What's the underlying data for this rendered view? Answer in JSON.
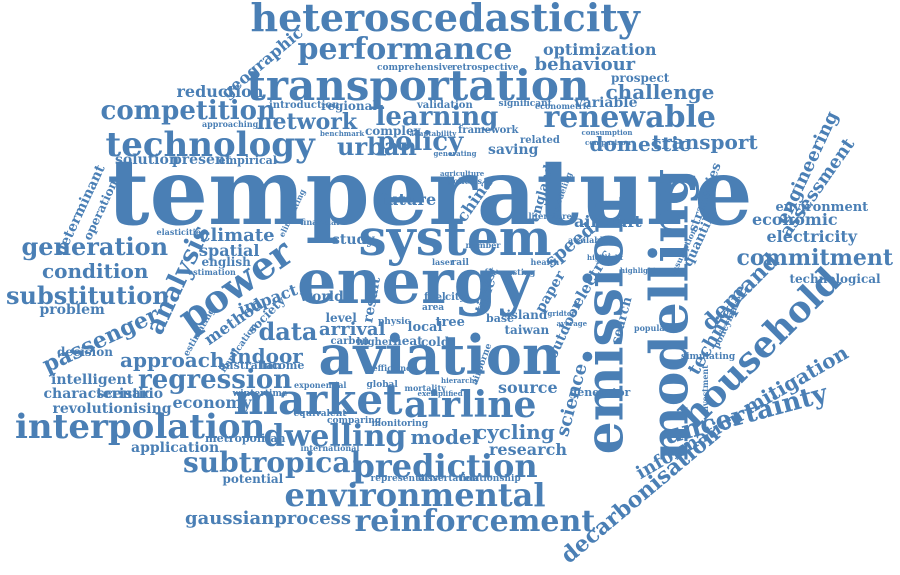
{
  "word_cloud": {
    "color": "#4a7fb5",
    "words": [
      {
        "id": "temperature",
        "text": "temperature"
      },
      {
        "id": "energy",
        "text": "energy"
      },
      {
        "id": "system",
        "text": "system"
      },
      {
        "id": "aviation",
        "text": "aviation"
      },
      {
        "id": "emission",
        "text": "emission"
      },
      {
        "id": "modelling",
        "text": "modelling"
      },
      {
        "id": "transportation",
        "text": "transportation"
      },
      {
        "id": "heteroscedasticity",
        "text": "heteroscedasticity"
      },
      {
        "id": "market",
        "text": "market"
      },
      {
        "id": "airline",
        "text": "airline"
      },
      {
        "id": "interpolation",
        "text": "interpolation"
      },
      {
        "id": "environmental",
        "text": "environmental"
      },
      {
        "id": "prediction",
        "text": "prediction"
      },
      {
        "id": "reinforcement",
        "text": "reinforcement"
      },
      {
        "id": "household",
        "text": "household"
      },
      {
        "id": "renewable",
        "text": "renewable"
      },
      {
        "id": "performance",
        "text": "performance"
      },
      {
        "id": "technology",
        "text": "technology"
      },
      {
        "id": "power",
        "text": "power"
      },
      {
        "id": "dwelling",
        "text": "dwelling"
      },
      {
        "id": "subtropical",
        "text": "subtropical"
      },
      {
        "id": "regression",
        "text": "regression"
      },
      {
        "id": "uncertainty",
        "text": "uncertainty"
      },
      {
        "id": "policy",
        "text": "policy"
      },
      {
        "id": "learning",
        "text": "learning"
      },
      {
        "id": "competition",
        "text": "competition"
      },
      {
        "id": "generation",
        "text": "generation"
      },
      {
        "id": "substitution",
        "text": "substitution"
      },
      {
        "id": "commitment",
        "text": "commitment"
      },
      {
        "id": "decarbonisation",
        "text": "decarbonisation"
      },
      {
        "id": "analysis",
        "text": "analysis"
      },
      {
        "id": "gaussianprocess",
        "text": "gaussianprocess"
      },
      {
        "id": "passenger",
        "text": "passenger"
      },
      {
        "id": "condition",
        "text": "condition"
      },
      {
        "id": "demand",
        "text": "demand"
      },
      {
        "id": "data",
        "text": "data"
      },
      {
        "id": "urban",
        "text": "urban"
      },
      {
        "id": "challenge",
        "text": "challenge"
      },
      {
        "id": "network",
        "text": "network"
      },
      {
        "id": "model",
        "text": "model"
      },
      {
        "id": "indoor",
        "text": "indoor"
      },
      {
        "id": "approach",
        "text": "approach"
      },
      {
        "id": "arrival",
        "text": "arrival"
      },
      {
        "id": "cycling",
        "text": "cycling"
      },
      {
        "id": "domestic",
        "text": "domestic"
      },
      {
        "id": "transport",
        "text": "transport"
      },
      {
        "id": "mitigation",
        "text": "mitigation"
      },
      {
        "id": "technique",
        "text": "technique"
      },
      {
        "id": "information",
        "text": "information"
      },
      {
        "id": "engineering",
        "text": "engineering"
      },
      {
        "id": "assessment",
        "text": "assessment"
      },
      {
        "id": "electricity",
        "text": "electricity"
      },
      {
        "id": "economic",
        "text": "economic"
      },
      {
        "id": "optimization",
        "text": "optimization"
      },
      {
        "id": "behaviour",
        "text": "behaviour"
      },
      {
        "id": "aircraft",
        "text": "aircraft"
      },
      {
        "id": "science",
        "text": "science"
      },
      {
        "id": "research",
        "text": "research"
      },
      {
        "id": "source",
        "text": "source"
      },
      {
        "id": "speed",
        "text": "speed"
      },
      {
        "id": "future",
        "text": "future"
      },
      {
        "id": "climate",
        "text": "climate"
      },
      {
        "id": "spatial",
        "text": "spatial"
      },
      {
        "id": "method",
        "text": "method"
      },
      {
        "id": "impact",
        "text": "impact"
      },
      {
        "id": "economy",
        "text": "economy"
      },
      {
        "id": "scenario",
        "text": "scenario"
      },
      {
        "id": "intelligent",
        "text": "intelligent"
      },
      {
        "id": "characteristic",
        "text": "characteristic"
      },
      {
        "id": "revolutionising",
        "text": "revolutionising"
      },
      {
        "id": "application",
        "text": "application"
      },
      {
        "id": "potential",
        "text": "potential"
      },
      {
        "id": "problem",
        "text": "problem"
      },
      {
        "id": "decision",
        "text": "decision"
      },
      {
        "id": "reduction",
        "text": "reduction"
      },
      {
        "id": "geographic",
        "text": "geographic"
      },
      {
        "id": "solution",
        "text": "solution"
      },
      {
        "id": "present",
        "text": "present"
      },
      {
        "id": "empirical",
        "text": "empirical"
      },
      {
        "id": "determinant",
        "text": "determinant"
      },
      {
        "id": "operation",
        "text": "operation"
      },
      {
        "id": "strategies",
        "text": "strategies"
      },
      {
        "id": "quantile",
        "text": "quantile"
      },
      {
        "id": "environment",
        "text": "environment"
      },
      {
        "id": "technological",
        "text": "technological"
      },
      {
        "id": "prospect",
        "text": "prospect"
      },
      {
        "id": "variable",
        "text": "variable"
      },
      {
        "id": "saving",
        "text": "saving"
      },
      {
        "id": "complex",
        "text": "complex"
      },
      {
        "id": "regional",
        "text": "regional"
      },
      {
        "id": "introduction",
        "text": "introduction"
      },
      {
        "id": "validation",
        "text": "validation"
      },
      {
        "id": "comprehensive",
        "text": "comprehensive"
      },
      {
        "id": "retrospective",
        "text": "retrospective"
      },
      {
        "id": "significant",
        "text": "significant"
      },
      {
        "id": "econometric",
        "text": "econometric"
      },
      {
        "id": "framework",
        "text": "framework"
      },
      {
        "id": "related",
        "text": "related"
      },
      {
        "id": "england",
        "text": "england"
      },
      {
        "id": "china",
        "text": "china"
      },
      {
        "id": "world",
        "text": "world"
      },
      {
        "id": "study",
        "text": "study"
      },
      {
        "id": "level",
        "text": "level"
      },
      {
        "id": "result",
        "text": "result"
      },
      {
        "id": "local",
        "text": "local"
      },
      {
        "id": "heat",
        "text": "heat"
      },
      {
        "id": "cold",
        "text": "cold"
      },
      {
        "id": "tree",
        "text": "tree"
      },
      {
        "id": "island",
        "text": "island"
      },
      {
        "id": "taiwan",
        "text": "taiwan"
      },
      {
        "id": "base",
        "text": "base"
      },
      {
        "id": "outdoor",
        "text": "outdoor"
      },
      {
        "id": "paper",
        "text": "paper"
      },
      {
        "id": "electric",
        "text": "electric"
      },
      {
        "id": "search",
        "text": "search"
      },
      {
        "id": "generator",
        "text": "generator"
      },
      {
        "id": "time",
        "text": "time"
      },
      {
        "id": "cost",
        "text": "cost"
      },
      {
        "id": "english",
        "text": "english"
      },
      {
        "id": "australian",
        "text": "australian"
      },
      {
        "id": "income",
        "text": "income"
      },
      {
        "id": "metropolitan",
        "text": "metropolitan"
      },
      {
        "id": "society",
        "text": "society"
      },
      {
        "id": "carbon",
        "text": "carbon"
      },
      {
        "id": "higher",
        "text": "higher"
      },
      {
        "id": "fuel",
        "text": "fuel"
      },
      {
        "id": "city",
        "text": "city"
      },
      {
        "id": "area",
        "text": "area"
      },
      {
        "id": "physic",
        "text": "physic"
      },
      {
        "id": "representative",
        "text": "representative"
      },
      {
        "id": "dissertation",
        "text": "dissertation"
      },
      {
        "id": "relationship",
        "text": "relationship"
      },
      {
        "id": "wintertime",
        "text": "wintertime"
      },
      {
        "id": "equivalent",
        "text": "equivalent"
      },
      {
        "id": "comparing",
        "text": "comparing"
      },
      {
        "id": "monitoring",
        "text": "monitoring"
      },
      {
        "id": "international",
        "text": "international"
      },
      {
        "id": "mortality",
        "text": "mortality"
      },
      {
        "id": "elasticities",
        "text": "elasticities"
      },
      {
        "id": "estimation",
        "text": "estimation"
      },
      {
        "id": "eliminating",
        "text": "eliminating"
      },
      {
        "id": "approaching",
        "text": "approaching"
      },
      {
        "id": "benchmark",
        "text": "benchmark"
      },
      {
        "id": "adaptability",
        "text": "adaptability"
      },
      {
        "id": "generating",
        "text": "generating"
      },
      {
        "id": "consumption",
        "text": "consumption"
      },
      {
        "id": "comparison",
        "text": "comparison"
      },
      {
        "id": "policies",
        "text": "policies"
      },
      {
        "id": "agriculture",
        "text": "agriculture"
      },
      {
        "id": "modeling",
        "text": "modeling"
      },
      {
        "id": "literature",
        "text": "literature"
      },
      {
        "id": "available",
        "text": "available"
      },
      {
        "id": "health",
        "text": "health"
      },
      {
        "id": "number",
        "text": "number"
      },
      {
        "id": "rail",
        "text": "rail"
      },
      {
        "id": "laser",
        "text": "laser"
      },
      {
        "id": "average",
        "text": "average"
      },
      {
        "id": "simulating",
        "text": "simulating"
      },
      {
        "id": "investment",
        "text": "investment"
      },
      {
        "id": "population",
        "text": "population"
      },
      {
        "id": "policymaker",
        "text": "policymaker"
      },
      {
        "id": "assumption",
        "text": "assumption"
      },
      {
        "id": "highlight",
        "text": "highlight"
      },
      {
        "id": "gridtop",
        "text": "gridtop"
      },
      {
        "id": "highlights",
        "text": "highlights"
      },
      {
        "id": "implication",
        "text": "implication"
      },
      {
        "id": "estimating",
        "text": "estimating"
      },
      {
        "id": "exponential",
        "text": "exponential"
      },
      {
        "id": "exemplified",
        "text": "exemplified"
      },
      {
        "id": "efficiency",
        "text": "efficiency"
      },
      {
        "id": "airborne",
        "text": "airborne"
      },
      {
        "id": "hierarchy",
        "text": "hierarchy"
      },
      {
        "id": "financial",
        "text": "financial"
      },
      {
        "id": "global",
        "text": "global"
      },
      {
        "id": "forecasting",
        "text": "forecasting"
      }
    ]
  }
}
